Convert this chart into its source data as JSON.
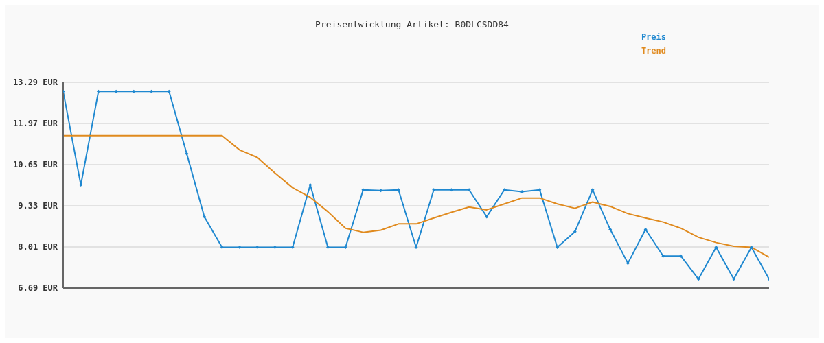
{
  "chart_data": {
    "type": "line",
    "title": "Preisentwicklung Artikel: B0DLCSDD84",
    "categories": [
      null,
      null,
      null,
      null,
      null,
      null,
      null,
      null,
      null,
      null,
      null,
      null,
      null,
      null,
      null,
      null,
      null,
      null,
      null,
      null,
      null,
      null,
      null,
      null,
      null,
      null,
      null,
      null,
      null,
      null,
      null,
      null,
      null,
      null,
      null,
      null,
      null,
      null,
      null,
      null,
      null
    ],
    "series": [
      {
        "name": "Preis",
        "color": "#1f88d0",
        "marker": "diamond",
        "values": [
          13.0,
          10.0,
          13.0,
          13.0,
          13.0,
          13.0,
          13.0,
          11.0,
          8.98,
          8.0,
          8.0,
          8.0,
          8.0,
          8.0,
          10.0,
          8.0,
          8.0,
          9.84,
          9.82,
          9.84,
          8.0,
          9.84,
          9.84,
          9.84,
          8.98,
          9.84,
          9.78,
          9.84,
          8.0,
          8.5,
          9.84,
          8.57,
          7.49,
          8.57,
          7.72,
          7.72,
          6.98,
          8.0,
          6.98,
          8.0,
          6.98
        ]
      },
      {
        "name": "Trend",
        "color": "#e08a1e",
        "marker": "none",
        "values": [
          11.58,
          11.58,
          11.58,
          11.58,
          11.58,
          11.58,
          11.58,
          11.58,
          11.58,
          11.58,
          11.12,
          10.88,
          10.38,
          9.91,
          9.6,
          9.14,
          8.61,
          8.48,
          8.55,
          8.75,
          8.75,
          8.94,
          9.12,
          9.29,
          9.2,
          9.39,
          9.58,
          9.58,
          9.39,
          9.25,
          9.45,
          9.31,
          9.08,
          8.94,
          8.81,
          8.61,
          8.32,
          8.15,
          8.03,
          8.0,
          7.68
        ]
      }
    ],
    "ylim": [
      6.69,
      13.29
    ],
    "yticks": [
      {
        "value": 6.69,
        "label": "6.69 EUR"
      },
      {
        "value": 8.01,
        "label": "8.01 EUR"
      },
      {
        "value": 9.33,
        "label": "9.33 EUR"
      },
      {
        "value": 10.65,
        "label": "10.65 EUR"
      },
      {
        "value": 11.97,
        "label": "11.97 EUR"
      },
      {
        "value": 13.29,
        "label": "13.29 EUR"
      }
    ],
    "grid": "y",
    "legend": "top right",
    "line_style": "solid"
  }
}
